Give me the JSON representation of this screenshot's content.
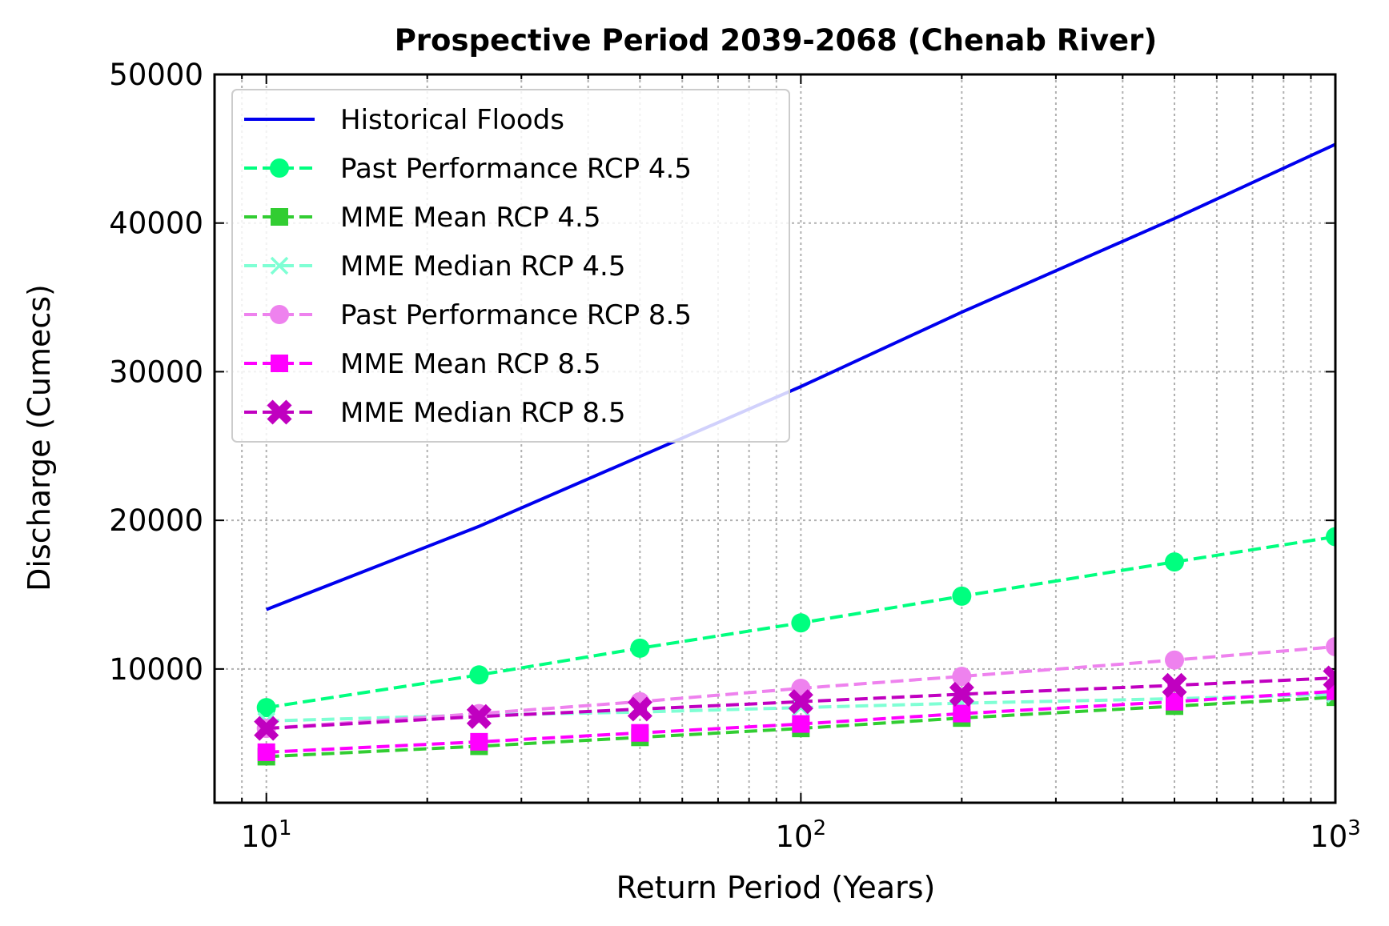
{
  "chart_data": {
    "type": "line",
    "title": "Prospective Period 2039-2068 (Chenab River)",
    "xlabel": "Return Period (Years)",
    "ylabel": "Discharge (Cumecs)",
    "x_scale": "log",
    "xlim": [
      8,
      1000
    ],
    "ylim": [
      1000,
      50000
    ],
    "x_ticks": [
      {
        "value": 10,
        "base": "10",
        "exp": "1"
      },
      {
        "value": 100,
        "base": "10",
        "exp": "2"
      },
      {
        "value": 1000,
        "base": "10",
        "exp": "3"
      }
    ],
    "y_ticks": [
      {
        "value": 10000,
        "label": "10000"
      },
      {
        "value": 20000,
        "label": "20000"
      },
      {
        "value": 30000,
        "label": "30000"
      },
      {
        "value": 40000,
        "label": "40000"
      },
      {
        "value": 50000,
        "label": "50000"
      }
    ],
    "grid": true,
    "legend_position": "top-left",
    "x": [
      10,
      25,
      50,
      100,
      200,
      500,
      1000
    ],
    "series": [
      {
        "name": "Historical Floods",
        "color": "#0000ee",
        "dash": "solid",
        "marker": "none",
        "values": [
          14000,
          19600,
          24300,
          29000,
          34000,
          40300,
          45300
        ]
      },
      {
        "name": "Past Performance RCP 4.5",
        "color": "#00ff7f",
        "dash": "dashed",
        "marker": "circle",
        "values": [
          7400,
          9600,
          11400,
          13100,
          14900,
          17200,
          18900
        ]
      },
      {
        "name": "MME Mean RCP 4.5",
        "color": "#32cd32",
        "dash": "dashed",
        "marker": "square",
        "values": [
          4100,
          4800,
          5400,
          6000,
          6700,
          7500,
          8100
        ]
      },
      {
        "name": "MME Median RCP 4.5",
        "color": "#7fffd4",
        "dash": "dashed",
        "marker": "x",
        "values": [
          6500,
          6900,
          7100,
          7400,
          7700,
          8000,
          8300
        ]
      },
      {
        "name": "Past Performance RCP 8.5",
        "color": "#ee82ee",
        "dash": "dashed",
        "marker": "circle",
        "values": [
          6000,
          7000,
          7800,
          8700,
          9500,
          10600,
          11500
        ]
      },
      {
        "name": "MME Mean RCP 8.5",
        "color": "#ff00ff",
        "dash": "dashed",
        "marker": "square",
        "values": [
          4400,
          5100,
          5700,
          6300,
          7000,
          7800,
          8500
        ]
      },
      {
        "name": "MME Median RCP 8.5",
        "color": "#c000c0",
        "dash": "dashed",
        "marker": "xfilled",
        "values": [
          6000,
          6800,
          7300,
          7800,
          8300,
          8900,
          9400
        ]
      }
    ]
  }
}
